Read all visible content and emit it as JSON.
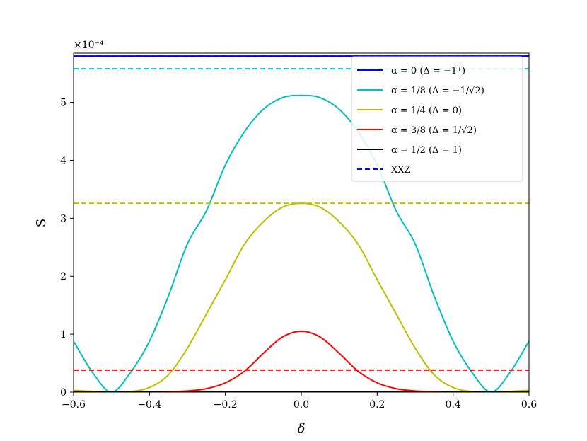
{
  "chart_data": {
    "type": "line",
    "title": "",
    "xlabel": "δ",
    "ylabel": "S",
    "y_scale_label": "×10⁻⁴",
    "y_scale": 0.0001,
    "xlim": [
      -0.6,
      0.6
    ],
    "ylim": [
      0,
      5.85
    ],
    "xticks": [
      -0.6,
      -0.4,
      -0.2,
      0.0,
      0.2,
      0.4,
      0.6
    ],
    "xtick_labels": [
      "−0.6",
      "−0.4",
      "−0.2",
      "0.0",
      "0.2",
      "0.4",
      "0.6"
    ],
    "yticks": [
      0,
      1,
      2,
      3,
      4,
      5
    ],
    "ytick_labels": [
      "0",
      "1",
      "2",
      "3",
      "4",
      "5"
    ],
    "grid": false,
    "legend_position": "top-right",
    "series": [
      {
        "name": "α = 0 (Δ = −1⁺)",
        "color": "#0000ff",
        "style": "solid",
        "x": [
          -0.6,
          0.6
        ],
        "y": [
          5.8,
          5.8
        ]
      },
      {
        "name": "α = 1/8 (Δ = −1/√2)",
        "color": "#00bfbf",
        "style": "solid",
        "x": [
          -0.6,
          -0.55,
          -0.5,
          -0.45,
          -0.4,
          -0.35,
          -0.3,
          -0.25,
          -0.2,
          -0.15,
          -0.1,
          -0.05,
          0.0,
          0.05,
          0.1,
          0.15,
          0.2,
          0.25,
          0.3,
          0.35,
          0.4,
          0.45,
          0.5,
          0.55,
          0.6
        ],
        "y": [
          0.88,
          0.34,
          0.0,
          0.34,
          0.88,
          1.66,
          2.56,
          3.13,
          3.92,
          4.49,
          4.88,
          5.08,
          5.12,
          5.08,
          4.88,
          4.49,
          3.92,
          3.13,
          2.56,
          1.66,
          0.88,
          0.34,
          0.0,
          0.34,
          0.88
        ]
      },
      {
        "name": "α = 1/4 (Δ = 0)",
        "color": "#bfbf00",
        "style": "solid",
        "x": [
          -0.6,
          -0.5,
          -0.45,
          -0.4,
          -0.35,
          -0.3,
          -0.25,
          -0.2,
          -0.15,
          -0.1,
          -0.05,
          0.0,
          0.05,
          0.1,
          0.15,
          0.2,
          0.25,
          0.3,
          0.35,
          0.4,
          0.45,
          0.5,
          0.6
        ],
        "y": [
          0.03,
          0.0,
          0.01,
          0.08,
          0.3,
          0.76,
          1.35,
          1.94,
          2.55,
          2.94,
          3.19,
          3.26,
          3.19,
          2.94,
          2.55,
          1.94,
          1.35,
          0.76,
          0.3,
          0.08,
          0.01,
          0.0,
          0.03
        ]
      },
      {
        "name": "α = 3/8 (Δ = 1/√2)",
        "color": "#ff0000",
        "style": "solid",
        "x": [
          -0.6,
          -0.4,
          -0.35,
          -0.3,
          -0.25,
          -0.2,
          -0.15,
          -0.1,
          -0.05,
          0.0,
          0.05,
          0.1,
          0.15,
          0.2,
          0.25,
          0.3,
          0.35,
          0.4,
          0.6
        ],
        "y": [
          0.0,
          0.0,
          0.01,
          0.02,
          0.06,
          0.16,
          0.36,
          0.67,
          0.95,
          1.05,
          0.95,
          0.67,
          0.36,
          0.16,
          0.06,
          0.02,
          0.01,
          0.0,
          0.0
        ]
      },
      {
        "name": "α = 1/2 (Δ = 1)",
        "color": "#000000",
        "style": "solid",
        "x": [
          -0.6,
          0.6
        ],
        "y": [
          0.0,
          0.0
        ]
      },
      {
        "name": "XXZ",
        "color": "#0000ff",
        "style": "dashed",
        "x": [
          -0.6,
          0.6
        ],
        "y": [
          5.8,
          5.8
        ]
      },
      {
        "name": "",
        "color": "#00bfbf",
        "style": "dashed",
        "x": [
          -0.6,
          0.6
        ],
        "y": [
          5.58,
          5.58
        ]
      },
      {
        "name": "",
        "color": "#bfbf00",
        "style": "dashed",
        "x": [
          -0.6,
          0.6
        ],
        "y": [
          3.26,
          3.26
        ]
      },
      {
        "name": "",
        "color": "#ff0000",
        "style": "dashed",
        "x": [
          -0.6,
          0.6
        ],
        "y": [
          0.38,
          0.38
        ]
      }
    ],
    "legend": [
      {
        "label": "α = 0 (Δ = −1⁺)",
        "color": "#0000ff",
        "style": "solid"
      },
      {
        "label": "α = 1/8 (Δ = −1/√2)",
        "color": "#00bfbf",
        "style": "solid"
      },
      {
        "label": "α = 1/4 (Δ = 0)",
        "color": "#bfbf00",
        "style": "solid"
      },
      {
        "label": "α = 3/8 (Δ = 1/√2)",
        "color": "#ff0000",
        "style": "solid"
      },
      {
        "label": "α = 1/2 (Δ = 1)",
        "color": "#000000",
        "style": "solid"
      },
      {
        "label": "XXZ",
        "color": "#0000ff",
        "style": "dashed"
      }
    ]
  }
}
